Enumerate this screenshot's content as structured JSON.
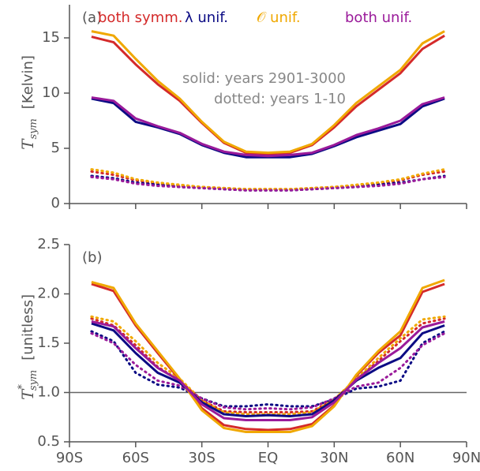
{
  "chart_data": [
    {
      "type": "line",
      "panel_label": "(a)",
      "ylabel_symbol": "T",
      "ylabel_subscript": "sym",
      "ylabel_unit": "[Kelvin]",
      "annotations": [
        "solid: years 2901-3000",
        "dotted: years 1-10"
      ],
      "x": [
        -80,
        -70,
        -60,
        -50,
        -40,
        -30,
        -20,
        -10,
        0,
        10,
        20,
        30,
        40,
        50,
        60,
        70,
        80
      ],
      "xlim": [
        -90,
        90
      ],
      "xticks": [
        -90,
        -60,
        -30,
        0,
        30,
        60,
        90
      ],
      "ylim": [
        0,
        18
      ],
      "yticks": [
        0,
        5,
        10,
        15
      ],
      "series": [
        {
          "name": "both symm.",
          "color": "#d42a2a",
          "values": [
            15.1,
            14.6,
            12.6,
            10.8,
            9.3,
            7.3,
            5.5,
            4.6,
            4.5,
            4.6,
            5.3,
            6.9,
            8.8,
            10.3,
            11.8,
            14.0,
            15.2
          ],
          "values_dotted": [
            2.9,
            2.6,
            2.1,
            1.8,
            1.6,
            1.5,
            1.4,
            1.3,
            1.3,
            1.3,
            1.4,
            1.5,
            1.6,
            1.8,
            2.1,
            2.6,
            2.9
          ]
        },
        {
          "name": "λ unif.",
          "color": "#0b0b84",
          "values": [
            9.5,
            9.1,
            7.4,
            6.9,
            6.3,
            5.3,
            4.6,
            4.2,
            4.2,
            4.2,
            4.5,
            5.2,
            6.0,
            6.6,
            7.2,
            8.8,
            9.5
          ],
          "values_dotted": [
            2.5,
            2.3,
            1.9,
            1.7,
            1.5,
            1.4,
            1.3,
            1.2,
            1.2,
            1.2,
            1.3,
            1.4,
            1.5,
            1.7,
            1.9,
            2.2,
            2.5
          ]
        },
        {
          "name": "𝒪 unif.",
          "color": "#f0a800",
          "values": [
            15.6,
            15.2,
            13.1,
            11.1,
            9.5,
            7.4,
            5.6,
            4.7,
            4.6,
            4.7,
            5.4,
            7.1,
            9.1,
            10.6,
            12.1,
            14.5,
            15.6
          ],
          "values_dotted": [
            3.1,
            2.8,
            2.2,
            1.9,
            1.7,
            1.5,
            1.4,
            1.3,
            1.3,
            1.3,
            1.4,
            1.5,
            1.7,
            1.9,
            2.2,
            2.7,
            3.1
          ]
        },
        {
          "name": "both unif.",
          "color": "#9a1a9a",
          "values": [
            9.6,
            9.3,
            7.7,
            7.0,
            6.4,
            5.4,
            4.7,
            4.4,
            4.3,
            4.4,
            4.6,
            5.3,
            6.2,
            6.8,
            7.5,
            9.0,
            9.6
          ],
          "values_dotted": [
            2.4,
            2.2,
            1.8,
            1.6,
            1.5,
            1.4,
            1.3,
            1.2,
            1.2,
            1.2,
            1.3,
            1.4,
            1.5,
            1.6,
            1.8,
            2.2,
            2.4
          ]
        }
      ]
    },
    {
      "type": "line",
      "panel_label": "(b)",
      "ylabel_symbol": "T",
      "ylabel_superscript": "*",
      "ylabel_subscript": "sym",
      "ylabel_unit": "[unitless]",
      "x": [
        -80,
        -70,
        -60,
        -50,
        -40,
        -30,
        -20,
        -10,
        0,
        10,
        20,
        30,
        40,
        50,
        60,
        70,
        80
      ],
      "xlim": [
        -90,
        90
      ],
      "xticks": [
        {
          "value": -90,
          "label": "90S"
        },
        {
          "value": -60,
          "label": "60S"
        },
        {
          "value": -30,
          "label": "30S"
        },
        {
          "value": 0,
          "label": "EQ"
        },
        {
          "value": 30,
          "label": "30N"
        },
        {
          "value": 60,
          "label": "60N"
        },
        {
          "value": 90,
          "label": "90N"
        }
      ],
      "ylim": [
        0.5,
        2.5
      ],
      "yticks": [
        0.5,
        {
          "value": 1,
          "label": "1.0"
        },
        1.5,
        {
          "value": 2,
          "label": "2.0"
        },
        2.5
      ],
      "hline": 1,
      "series": [
        {
          "color": "#d42a2a",
          "values": [
            2.1,
            2.03,
            1.68,
            1.4,
            1.13,
            0.84,
            0.67,
            0.63,
            0.62,
            0.63,
            0.68,
            0.87,
            1.17,
            1.4,
            1.58,
            2.02,
            2.1
          ],
          "values_dotted": [
            1.75,
            1.68,
            1.48,
            1.26,
            1.12,
            0.92,
            0.81,
            0.8,
            0.8,
            0.8,
            0.81,
            0.93,
            1.13,
            1.32,
            1.52,
            1.7,
            1.75
          ]
        },
        {
          "color": "#0b0b84",
          "values": [
            1.7,
            1.63,
            1.4,
            1.2,
            1.1,
            0.9,
            0.78,
            0.76,
            0.77,
            0.76,
            0.78,
            0.92,
            1.12,
            1.25,
            1.35,
            1.6,
            1.68
          ],
          "values_dotted": [
            1.62,
            1.52,
            1.2,
            1.08,
            1.05,
            0.94,
            0.86,
            0.86,
            0.88,
            0.86,
            0.86,
            0.93,
            1.04,
            1.06,
            1.12,
            1.5,
            1.62
          ]
        },
        {
          "color": "#f0a800",
          "values": [
            2.12,
            2.06,
            1.7,
            1.42,
            1.14,
            0.82,
            0.64,
            0.6,
            0.6,
            0.6,
            0.66,
            0.86,
            1.18,
            1.42,
            1.62,
            2.06,
            2.14
          ],
          "values_dotted": [
            1.77,
            1.72,
            1.52,
            1.3,
            1.14,
            0.92,
            0.8,
            0.78,
            0.78,
            0.78,
            0.8,
            0.93,
            1.14,
            1.35,
            1.55,
            1.74,
            1.77
          ]
        },
        {
          "color": "#9a1a9a",
          "values": [
            1.72,
            1.67,
            1.45,
            1.25,
            1.12,
            0.88,
            0.74,
            0.72,
            0.72,
            0.72,
            0.75,
            0.9,
            1.13,
            1.3,
            1.45,
            1.66,
            1.72
          ],
          "values_dotted": [
            1.6,
            1.5,
            1.28,
            1.12,
            1.07,
            0.94,
            0.85,
            0.83,
            0.84,
            0.83,
            0.85,
            0.94,
            1.06,
            1.1,
            1.25,
            1.48,
            1.6
          ]
        }
      ]
    }
  ]
}
